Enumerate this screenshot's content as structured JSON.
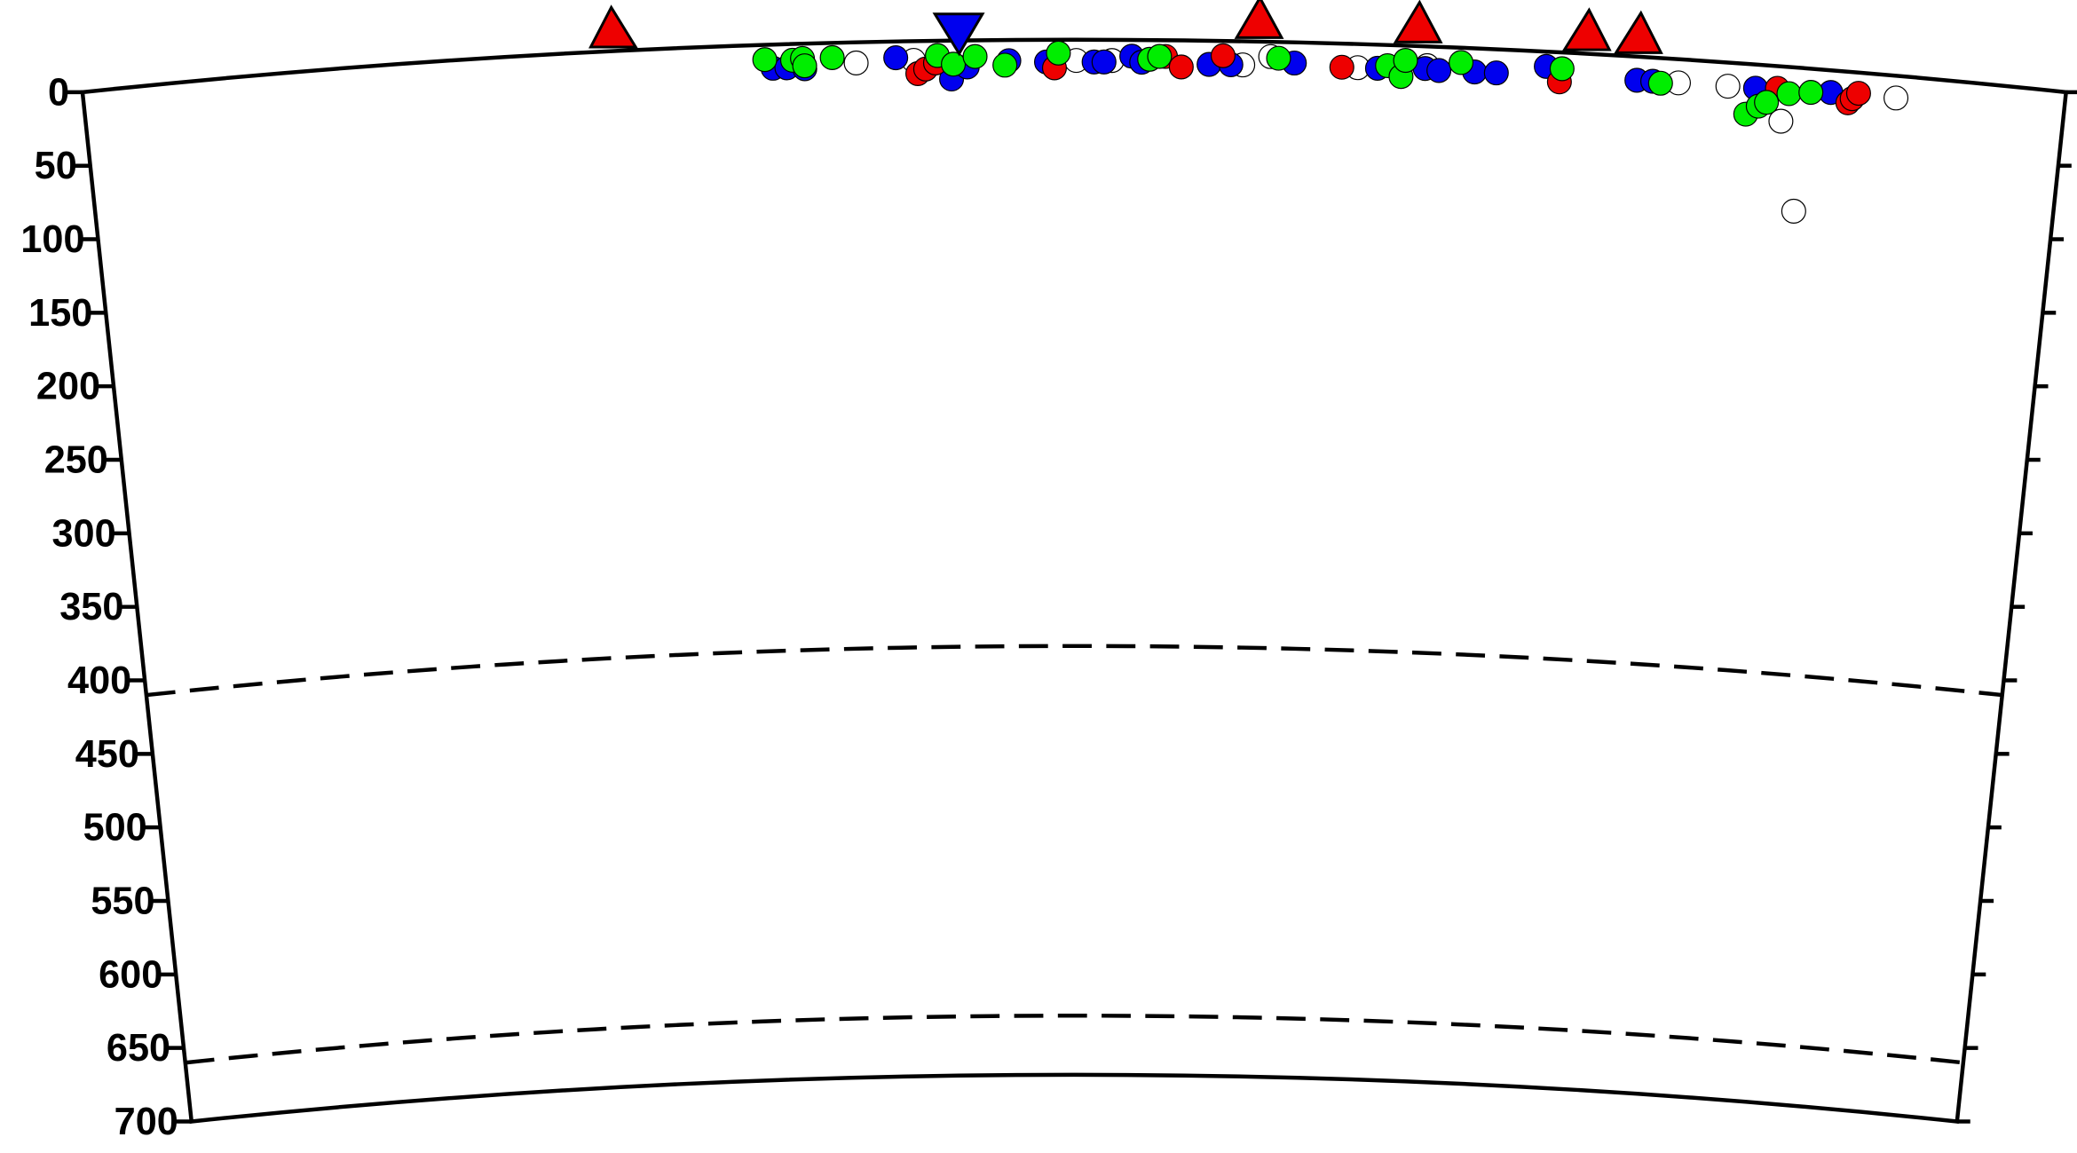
{
  "chart_data": {
    "type": "scatter",
    "ylim": [
      0,
      700
    ],
    "yticks": [
      0,
      50,
      100,
      150,
      200,
      250,
      300,
      350,
      400,
      450,
      500,
      550,
      600,
      650,
      700
    ],
    "xlim": [
      0,
      100
    ],
    "discontinuities": [
      410,
      660
    ],
    "series": [
      {
        "color": "#ffffff",
        "x": [
          39.0,
          41.9,
          50.1,
          51.9,
          58.5,
          59.9,
          64.3,
          67.8,
          80.5,
          83.0,
          85.8,
          86.8,
          91.5
        ],
        "values": [
          14,
          13,
          14,
          14,
          16,
          10,
          16,
          13,
          16,
          16,
          37,
          97,
          15
        ]
      },
      {
        "color": "#0000ee",
        "x": [
          34.8,
          35.5,
          36.4,
          41.0,
          43.8,
          44.6,
          46.7,
          48.6,
          51.0,
          51.5,
          52.9,
          53.4,
          56.8,
          57.9,
          61.1,
          65.3,
          67.7,
          68.4,
          70.2,
          71.3,
          73.8,
          78.4,
          79.2,
          84.4,
          88.2
        ],
        "values": [
          16,
          16,
          17,
          11,
          26,
          18,
          14,
          15,
          15,
          15,
          11,
          15,
          16,
          16,
          14,
          16,
          15,
          16,
          16,
          16,
          10,
          16,
          16,
          16,
          15
        ]
      },
      {
        "color": "#ee0000",
        "x": [
          42.1,
          42.5,
          43.0,
          49.0,
          54.6,
          55.4,
          57.5,
          63.5,
          74.5,
          85.5,
          89.1,
          89.3,
          89.6
        ],
        "values": [
          22,
          19,
          15,
          19,
          11,
          18,
          10,
          16,
          20,
          15,
          21,
          18,
          14
        ]
      },
      {
        "color": "#00ee00",
        "x": [
          34.4,
          35.8,
          36.3,
          36.4,
          37.8,
          43.1,
          43.9,
          45.0,
          46.5,
          49.2,
          53.8,
          54.3,
          60.3,
          65.8,
          66.5,
          66.7,
          69.5,
          74.6,
          79.6,
          84.0,
          84.6,
          85.0,
          86.1,
          87.2
        ],
        "values": [
          10,
          11,
          10,
          15,
          10,
          10,
          16,
          11,
          17,
          9,
          13,
          11,
          11,
          14,
          21,
          10,
          10,
          11,
          17,
          34,
          28,
          25,
          18,
          16
        ]
      }
    ],
    "volcanoes": {
      "color": "#ee0000",
      "x": [
        26.8,
        59.3,
        67.3,
        75.8,
        78.4
      ]
    },
    "station": {
      "color": "#0000ee",
      "x": [
        44.2
      ]
    }
  }
}
